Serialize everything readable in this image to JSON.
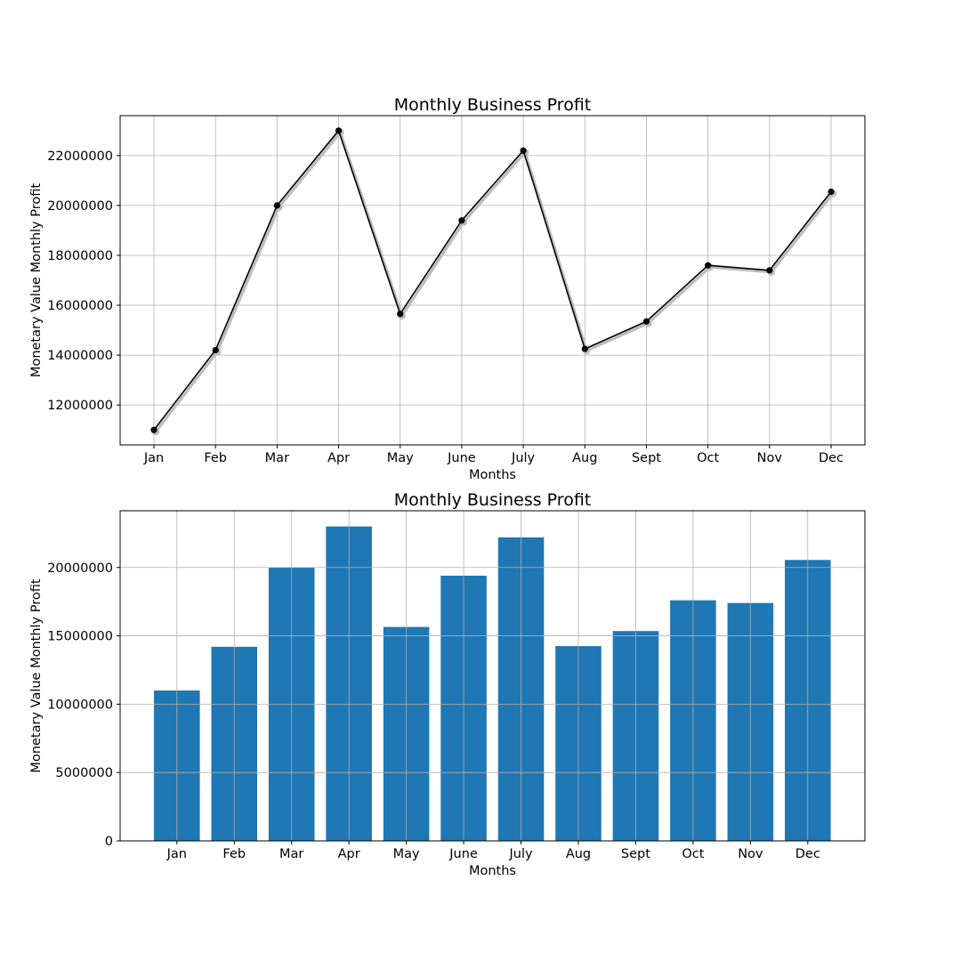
{
  "chart_data": [
    {
      "type": "line",
      "title": "Monthly Business Profit",
      "xlabel": "Months",
      "ylabel": "Monetary Value Monthly Profit",
      "categories": [
        "Jan",
        "Feb",
        "Mar",
        "Apr",
        "May",
        "June",
        "July",
        "Aug",
        "Sept",
        "Oct",
        "Nov",
        "Dec"
      ],
      "values": [
        11000000,
        14200000,
        20000000,
        23000000,
        15650000,
        19400000,
        22200000,
        14250000,
        15350000,
        17600000,
        17400000,
        20550000
      ],
      "ylim": [
        10400000,
        23600000
      ],
      "yticks": [
        12000000,
        14000000,
        16000000,
        18000000,
        20000000,
        22000000
      ],
      "ytick_labels": [
        "12000000",
        "14000000",
        "16000000",
        "18000000",
        "20000000",
        "22000000"
      ],
      "grid": true,
      "line_color": "#000000",
      "marker": "circle",
      "shadow": true
    },
    {
      "type": "bar",
      "title": "Monthly Business Profit",
      "xlabel": "Months",
      "ylabel": "Monetary Value Monthly Profit",
      "categories": [
        "Jan",
        "Feb",
        "Mar",
        "Apr",
        "May",
        "June",
        "July",
        "Aug",
        "Sept",
        "Oct",
        "Nov",
        "Dec"
      ],
      "values": [
        11000000,
        14200000,
        20000000,
        23000000,
        15650000,
        19400000,
        22200000,
        14250000,
        15350000,
        17600000,
        17400000,
        20550000
      ],
      "ylim": [
        0,
        24150000
      ],
      "yticks": [
        0,
        5000000,
        10000000,
        15000000,
        20000000
      ],
      "ytick_labels": [
        "0",
        "5000000",
        "10000000",
        "15000000",
        "20000000"
      ],
      "grid": true,
      "bar_color": "#1f77b4"
    }
  ]
}
